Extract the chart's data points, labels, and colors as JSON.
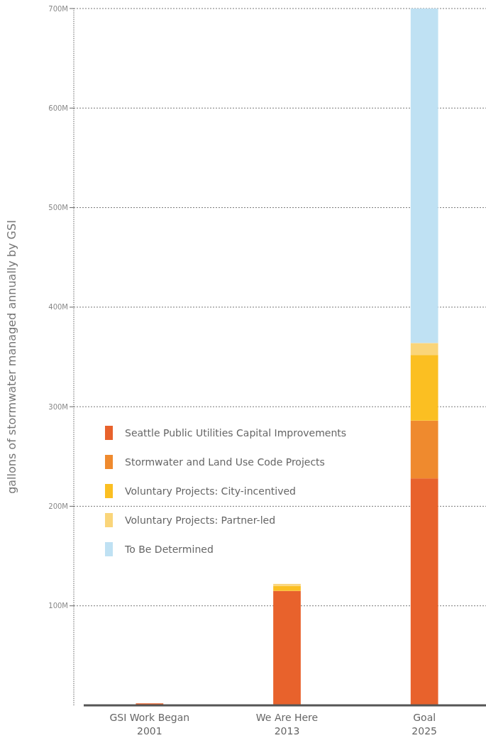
{
  "chart_data": {
    "type": "bar",
    "stacked": true,
    "ylabel": "gallons of stormwater managed annually by GSI",
    "categories": [
      "GSI Work Began\n2001",
      "We Are Here\n2013",
      "Goal\n2025"
    ],
    "series": [
      {
        "name": "Seattle Public Utilities Capital Improvements",
        "color": "#e8622c",
        "values": [
          2,
          115,
          228
        ]
      },
      {
        "name": "Stormwater and Land Use Code Projects",
        "color": "#ef8a2e",
        "values": [
          0,
          0,
          58
        ]
      },
      {
        "name": "Voluntary Projects: City-incentived",
        "color": "#fbbf22",
        "values": [
          0,
          5,
          66
        ]
      },
      {
        "name": "Voluntary Projects: Partner-led",
        "color": "#fad57a",
        "values": [
          0,
          2,
          12
        ]
      },
      {
        "name": "To Be Determined",
        "color": "#bfe1f3",
        "values": [
          0,
          0,
          336
        ]
      }
    ],
    "ylim": [
      0,
      700
    ],
    "yticks": [
      {
        "value": 100,
        "label": "100M"
      },
      {
        "value": 200,
        "label": "200M"
      },
      {
        "value": 300,
        "label": "300M"
      },
      {
        "value": 400,
        "label": "400M"
      },
      {
        "value": 500,
        "label": "500M"
      },
      {
        "value": 600,
        "label": "600M"
      },
      {
        "value": 700,
        "label": "700M"
      }
    ],
    "grid": "y",
    "legend": "left"
  }
}
